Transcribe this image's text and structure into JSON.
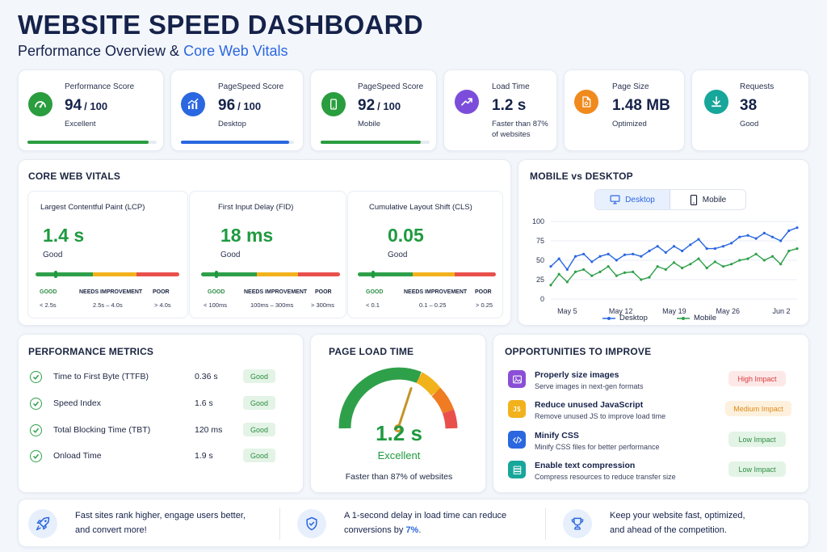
{
  "header": {
    "title": "WEBSITE SPEED DASHBOARD",
    "subtitle_prefix": "Performance Overview & ",
    "subtitle_accent": "Core Web Vitals"
  },
  "kpis": [
    {
      "label": "Performance Score",
      "value": "94",
      "denominator": "/ 100",
      "sub": "Excellent",
      "icon": "speedometer-icon",
      "color": "#2a9d3f",
      "progress": 0.94
    },
    {
      "label": "PageSpeed Score",
      "value": "96",
      "denominator": "/ 100",
      "sub": "Desktop",
      "icon": "trend-chart-icon",
      "color": "#2a67e0",
      "progress": 0.96
    },
    {
      "label": "PageSpeed Score",
      "value": "92",
      "denominator": "/ 100",
      "sub": "Mobile",
      "icon": "mobile-icon",
      "color": "#2a9d3f",
      "progress": 0.92
    },
    {
      "label": "Load Time",
      "value": "1.2 s",
      "sub": "Faster than 87%",
      "sub2": "of websites",
      "icon": "trend-up-icon",
      "color": "#7c4ddb"
    },
    {
      "label": "Page Size",
      "value": "1.48 MB",
      "sub": "Optimized",
      "icon": "file-icon",
      "color": "#f08a1e"
    },
    {
      "label": "Requests",
      "value": "38",
      "sub": "Good",
      "icon": "download-icon",
      "color": "#17a69a"
    }
  ],
  "core_web_vitals": {
    "title": "CORE WEB VITALS",
    "items": [
      {
        "name": "Largest Contentful Paint (LCP)",
        "value": "1.4 s",
        "status": "Good",
        "good": "GOOD",
        "needs": "NEEDS IMPROVEMENT",
        "poor": "POOR",
        "good_range": "< 2.5s",
        "needs_range": "2.5s – 4.0s",
        "poor_range": "> 4.0s",
        "position": 0.14
      },
      {
        "name": "First Input Delay (FID)",
        "value": "18 ms",
        "status": "Good",
        "good": "GOOD",
        "needs": "NEEDS IMPROVEMENT",
        "poor": "POOR",
        "good_range": "< 100ms",
        "needs_range": "100ms – 300ms",
        "poor_range": "> 300ms",
        "position": 0.11
      },
      {
        "name": "Cumulative Layout Shift (CLS)",
        "value": "0.05",
        "status": "Good",
        "good": "GOOD",
        "needs": "NEEDS IMPROVEMENT",
        "poor": "POOR",
        "good_range": "< 0.1",
        "needs_range": "0.1 – 0.25",
        "poor_range": "> 0.25",
        "position": 0.11
      }
    ],
    "colors": {
      "good": "#2fa04a",
      "needs": "#f2b21c",
      "poor": "#e9504c"
    }
  },
  "mobile_vs_desktop": {
    "title": "MOBILE vs DESKTOP",
    "toggle_desktop": "Desktop",
    "toggle_mobile": "Mobile"
  },
  "chart_data": {
    "type": "line",
    "x_tick_labels": [
      "May 5",
      "May 12",
      "May 19",
      "May 26",
      "Jun 2"
    ],
    "ylim": [
      0,
      100
    ],
    "y_ticks": [
      0,
      25,
      50,
      75,
      100
    ],
    "grid": true,
    "legend_position": "bottom",
    "series": [
      {
        "name": "Desktop",
        "color": "#2a67e0",
        "values": [
          42,
          52,
          38,
          55,
          58,
          48,
          55,
          58,
          50,
          57,
          58,
          55,
          62,
          68,
          60,
          68,
          62,
          70,
          77,
          65,
          65,
          68,
          72,
          80,
          82,
          78,
          85,
          80,
          75,
          88,
          92
        ]
      },
      {
        "name": "Mobile",
        "color": "#2fa04a",
        "values": [
          18,
          32,
          22,
          35,
          38,
          30,
          35,
          42,
          30,
          34,
          35,
          25,
          28,
          42,
          38,
          47,
          40,
          45,
          52,
          40,
          48,
          42,
          45,
          50,
          52,
          58,
          50,
          55,
          45,
          62,
          65
        ]
      }
    ]
  },
  "performance_metrics": {
    "title": "PERFORMANCE METRICS",
    "rows": [
      {
        "name": "Time to First Byte (TTFB)",
        "value": "0.36 s",
        "badge": "Good"
      },
      {
        "name": "Speed Index",
        "value": "1.6 s",
        "badge": "Good"
      },
      {
        "name": "Total Blocking Time (TBT)",
        "value": "120 ms",
        "badge": "Good"
      },
      {
        "name": "Onload Time",
        "value": "1.9 s",
        "badge": "Good"
      }
    ]
  },
  "page_load_time": {
    "title": "PAGE LOAD TIME",
    "value": "1.2 s",
    "rating": "Excellent",
    "caption": "Faster than 87% of websites",
    "gauge_level": 0.6
  },
  "opportunities": {
    "title": "OPPORTUNITIES TO IMPROVE",
    "items": [
      {
        "title": "Properly size images",
        "desc": "Serve images in next-gen formats",
        "badge": "High Impact",
        "icon": "image-icon",
        "icon_color": "#8a4fd6",
        "badge_bg": "#fde8e8",
        "badge_fg": "#d93a3a"
      },
      {
        "title": "Reduce unused JavaScript",
        "desc": "Remove unused JS to improve load time",
        "badge": "Medium Impact",
        "icon": "javascript-icon",
        "icon_color": "#f2b21c",
        "badge_bg": "#fdf1de",
        "badge_fg": "#e08a17"
      },
      {
        "title": "Minify CSS",
        "desc": "Minify CSS files for better performance",
        "badge": "Low Impact",
        "icon": "code-icon",
        "icon_color": "#2a67e0",
        "badge_bg": "#e3f4e6",
        "badge_fg": "#2c8c42"
      },
      {
        "title": "Enable text compression",
        "desc": "Compress resources to reduce transfer size",
        "badge": "Low Impact",
        "icon": "compress-icon",
        "icon_color": "#17a69a",
        "badge_bg": "#e3f4e6",
        "badge_fg": "#2c8c42"
      }
    ]
  },
  "footer": [
    {
      "icon": "rocket-icon",
      "line1": "Fast sites rank higher, engage users better,",
      "line2": "and convert more!"
    },
    {
      "icon": "shield-check-icon",
      "line1": "A 1-second delay in load time can reduce",
      "line2_prefix": "conversions by ",
      "line2_highlight": "7%",
      "line2_suffix": "."
    },
    {
      "icon": "trophy-icon",
      "line1": "Keep your website fast, optimized,",
      "line2": "and ahead of the competition."
    }
  ]
}
